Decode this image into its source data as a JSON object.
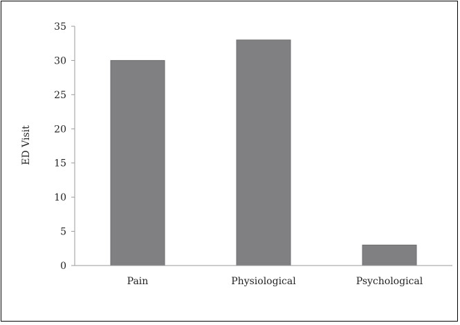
{
  "chart_data": {
    "type": "bar",
    "title": "",
    "xlabel": "",
    "ylabel": "ED Visit",
    "categories": [
      "Pain",
      "Physiological",
      "Psychological"
    ],
    "values": [
      30,
      33,
      3
    ],
    "ylim": [
      0,
      35
    ],
    "yticks": [
      "0",
      "5",
      "10",
      "15",
      "20",
      "25",
      "30",
      "35"
    ],
    "grid": false,
    "legend": "none",
    "bar_color": "#808082"
  }
}
